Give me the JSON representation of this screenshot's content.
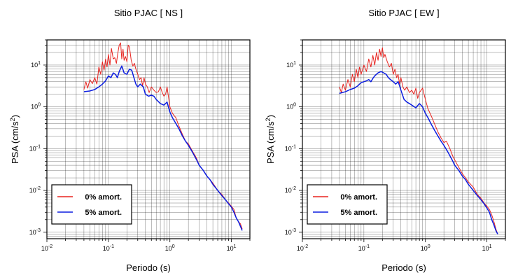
{
  "chart_data": [
    {
      "type": "line",
      "title": "Sitio PJAC [ NS ]",
      "xlabel": "Periodo (s)",
      "ylabel": {
        "base": "PSA (cm/s",
        "sup": "2",
        "close": ")"
      },
      "x_scale": "log",
      "y_scale": "log",
      "xlim": [
        0.01,
        20
      ],
      "ylim": [
        0.0007,
        40
      ],
      "grid": true,
      "legend_position": "bottom-left",
      "x_ticks": [
        {
          "value": 0.01,
          "base": "10",
          "exp": "-2"
        },
        {
          "value": 0.1,
          "base": "10",
          "exp": "-1"
        },
        {
          "value": 1,
          "base": "10",
          "exp": "0"
        },
        {
          "value": 10,
          "base": "10",
          "exp": "1"
        }
      ],
      "y_ticks": [
        {
          "value": 0.001,
          "base": "10",
          "exp": "-3"
        },
        {
          "value": 0.01,
          "base": "10",
          "exp": "-2"
        },
        {
          "value": 0.1,
          "base": "10",
          "exp": "-1"
        },
        {
          "value": 1,
          "base": "10",
          "exp": "0"
        },
        {
          "value": 10,
          "base": "10",
          "exp": "1"
        }
      ],
      "series": [
        {
          "name": "0% amort.",
          "color": "#e8231f",
          "points": [
            [
              0.04,
              2.6
            ],
            [
              0.043,
              4.0
            ],
            [
              0.046,
              2.8
            ],
            [
              0.05,
              4.5
            ],
            [
              0.055,
              3.6
            ],
            [
              0.06,
              5.0
            ],
            [
              0.065,
              3.5
            ],
            [
              0.07,
              9.0
            ],
            [
              0.075,
              6.0
            ],
            [
              0.08,
              12
            ],
            [
              0.085,
              7.5
            ],
            [
              0.09,
              14
            ],
            [
              0.095,
              9
            ],
            [
              0.1,
              18
            ],
            [
              0.106,
              10
            ],
            [
              0.112,
              25
            ],
            [
              0.12,
              14
            ],
            [
              0.127,
              15
            ],
            [
              0.135,
              11
            ],
            [
              0.142,
              19
            ],
            [
              0.15,
              30
            ],
            [
              0.158,
              34
            ],
            [
              0.165,
              14
            ],
            [
              0.173,
              24
            ],
            [
              0.18,
              13
            ],
            [
              0.19,
              16
            ],
            [
              0.2,
              12
            ],
            [
              0.21,
              30
            ],
            [
              0.22,
              27
            ],
            [
              0.235,
              13
            ],
            [
              0.25,
              9.5
            ],
            [
              0.265,
              11
            ],
            [
              0.28,
              8
            ],
            [
              0.3,
              6
            ],
            [
              0.32,
              4.5
            ],
            [
              0.34,
              5.0
            ],
            [
              0.36,
              3.2
            ],
            [
              0.38,
              5.0
            ],
            [
              0.4,
              3.5
            ],
            [
              0.43,
              3.0
            ],
            [
              0.46,
              2.2
            ],
            [
              0.5,
              3.0
            ],
            [
              0.55,
              2.5
            ],
            [
              0.6,
              2.2
            ],
            [
              0.65,
              2.3
            ],
            [
              0.7,
              3.0
            ],
            [
              0.75,
              2.2
            ],
            [
              0.8,
              1.8
            ],
            [
              0.85,
              2.0
            ],
            [
              0.9,
              3.0
            ],
            [
              1.0,
              1.0
            ],
            [
              1.1,
              0.7
            ],
            [
              1.25,
              0.55
            ],
            [
              1.4,
              0.35
            ],
            [
              1.6,
              0.22
            ],
            [
              1.8,
              0.15
            ],
            [
              2.0,
              0.13
            ],
            [
              2.3,
              0.09
            ],
            [
              2.7,
              0.06
            ],
            [
              3.0,
              0.04
            ],
            [
              3.5,
              0.03
            ],
            [
              4.0,
              0.022
            ],
            [
              4.5,
              0.018
            ],
            [
              5.0,
              0.015
            ],
            [
              6.0,
              0.01
            ],
            [
              7.0,
              0.008
            ],
            [
              8.0,
              0.006
            ],
            [
              9.0,
              0.005
            ],
            [
              10,
              0.0042
            ],
            [
              11,
              0.0035
            ],
            [
              12,
              0.0022
            ],
            [
              13,
              0.0018
            ],
            [
              14,
              0.0016
            ],
            [
              15,
              0.0012
            ]
          ]
        },
        {
          "name": "5% amort.",
          "color": "#0b1de0",
          "points": [
            [
              0.04,
              2.3
            ],
            [
              0.05,
              2.4
            ],
            [
              0.06,
              2.6
            ],
            [
              0.07,
              3.0
            ],
            [
              0.08,
              3.5
            ],
            [
              0.09,
              4.2
            ],
            [
              0.1,
              5.5
            ],
            [
              0.11,
              5.0
            ],
            [
              0.12,
              6.5
            ],
            [
              0.13,
              6.0
            ],
            [
              0.14,
              5.0
            ],
            [
              0.15,
              7.0
            ],
            [
              0.165,
              9.5
            ],
            [
              0.18,
              6.5
            ],
            [
              0.2,
              6.0
            ],
            [
              0.22,
              8.0
            ],
            [
              0.24,
              7.5
            ],
            [
              0.26,
              5.0
            ],
            [
              0.28,
              3.5
            ],
            [
              0.3,
              3.0
            ],
            [
              0.33,
              3.5
            ],
            [
              0.37,
              3.0
            ],
            [
              0.4,
              2.0
            ],
            [
              0.45,
              1.8
            ],
            [
              0.5,
              1.9
            ],
            [
              0.55,
              1.8
            ],
            [
              0.6,
              1.5
            ],
            [
              0.7,
              1.2
            ],
            [
              0.8,
              1.1
            ],
            [
              0.9,
              1.3
            ],
            [
              1.0,
              0.75
            ],
            [
              1.1,
              0.55
            ],
            [
              1.25,
              0.4
            ],
            [
              1.4,
              0.3
            ],
            [
              1.6,
              0.2
            ],
            [
              1.8,
              0.15
            ],
            [
              2.0,
              0.12
            ],
            [
              2.3,
              0.085
            ],
            [
              2.7,
              0.055
            ],
            [
              3.0,
              0.04
            ],
            [
              3.5,
              0.03
            ],
            [
              4.0,
              0.022
            ],
            [
              4.5,
              0.018
            ],
            [
              5.0,
              0.014
            ],
            [
              6.0,
              0.01
            ],
            [
              7.0,
              0.0075
            ],
            [
              8.0,
              0.006
            ],
            [
              9.0,
              0.0048
            ],
            [
              10,
              0.004
            ],
            [
              11,
              0.003
            ],
            [
              12,
              0.0022
            ],
            [
              13,
              0.0018
            ],
            [
              14,
              0.0014
            ],
            [
              15,
              0.0011
            ]
          ]
        }
      ]
    },
    {
      "type": "line",
      "title": "Sitio PJAC [ EW ]",
      "xlabel": "Periodo (s)",
      "ylabel": {
        "base": "PSA (cm/s",
        "sup": "2",
        "close": ")"
      },
      "x_scale": "log",
      "y_scale": "log",
      "xlim": [
        0.01,
        20
      ],
      "ylim": [
        0.0007,
        40
      ],
      "grid": true,
      "legend_position": "bottom-left",
      "x_ticks": [
        {
          "value": 0.01,
          "base": "10",
          "exp": "-2"
        },
        {
          "value": 0.1,
          "base": "10",
          "exp": "-1"
        },
        {
          "value": 1,
          "base": "10",
          "exp": "0"
        },
        {
          "value": 10,
          "base": "10",
          "exp": "1"
        }
      ],
      "y_ticks": [
        {
          "value": 0.001,
          "base": "10",
          "exp": "-3"
        },
        {
          "value": 0.01,
          "base": "10",
          "exp": "-2"
        },
        {
          "value": 0.1,
          "base": "10",
          "exp": "-1"
        },
        {
          "value": 1,
          "base": "10",
          "exp": "0"
        },
        {
          "value": 10,
          "base": "10",
          "exp": "1"
        }
      ],
      "series": [
        {
          "name": "0% amort.",
          "color": "#e8231f",
          "points": [
            [
              0.04,
              3.0
            ],
            [
              0.043,
              2.2
            ],
            [
              0.046,
              3.5
            ],
            [
              0.05,
              2.5
            ],
            [
              0.055,
              4.5
            ],
            [
              0.06,
              3.0
            ],
            [
              0.065,
              6.0
            ],
            [
              0.07,
              4.0
            ],
            [
              0.075,
              8.0
            ],
            [
              0.08,
              5.0
            ],
            [
              0.085,
              9.0
            ],
            [
              0.09,
              6.0
            ],
            [
              0.1,
              10
            ],
            [
              0.11,
              7.0
            ],
            [
              0.12,
              14
            ],
            [
              0.13,
              9.0
            ],
            [
              0.14,
              17
            ],
            [
              0.15,
              10
            ],
            [
              0.16,
              20
            ],
            [
              0.17,
              13
            ],
            [
              0.18,
              24
            ],
            [
              0.19,
              16
            ],
            [
              0.2,
              26
            ],
            [
              0.21,
              15
            ],
            [
              0.22,
              18
            ],
            [
              0.24,
              12
            ],
            [
              0.26,
              9
            ],
            [
              0.28,
              11
            ],
            [
              0.3,
              6
            ],
            [
              0.32,
              8
            ],
            [
              0.34,
              5
            ],
            [
              0.36,
              6
            ],
            [
              0.38,
              3.5
            ],
            [
              0.4,
              5.0
            ],
            [
              0.43,
              3.0
            ],
            [
              0.46,
              2.5
            ],
            [
              0.5,
              3.0
            ],
            [
              0.55,
              2.2
            ],
            [
              0.6,
              2.5
            ],
            [
              0.65,
              2.0
            ],
            [
              0.7,
              2.8
            ],
            [
              0.75,
              1.6
            ],
            [
              0.8,
              2.2
            ],
            [
              0.9,
              2.8
            ],
            [
              1.0,
              1.5
            ],
            [
              1.1,
              0.9
            ],
            [
              1.25,
              0.6
            ],
            [
              1.4,
              0.4
            ],
            [
              1.6,
              0.25
            ],
            [
              1.8,
              0.18
            ],
            [
              2.0,
              0.14
            ],
            [
              2.2,
              0.15
            ],
            [
              2.5,
              0.1
            ],
            [
              2.8,
              0.065
            ],
            [
              3.2,
              0.045
            ],
            [
              3.6,
              0.033
            ],
            [
              4.0,
              0.025
            ],
            [
              4.5,
              0.02
            ],
            [
              5.0,
              0.016
            ],
            [
              6.0,
              0.012
            ],
            [
              7.0,
              0.008
            ],
            [
              8.0,
              0.0065
            ],
            [
              9.0,
              0.005
            ],
            [
              10,
              0.0042
            ],
            [
              11,
              0.0035
            ],
            [
              12,
              0.0026
            ],
            [
              13,
              0.0018
            ],
            [
              14,
              0.0012
            ],
            [
              15,
              0.0009
            ]
          ]
        },
        {
          "name": "5% amort.",
          "color": "#0b1de0",
          "points": [
            [
              0.04,
              2.1
            ],
            [
              0.05,
              2.3
            ],
            [
              0.06,
              2.6
            ],
            [
              0.07,
              2.8
            ],
            [
              0.08,
              3.2
            ],
            [
              0.09,
              3.8
            ],
            [
              0.1,
              4.0
            ],
            [
              0.11,
              4.2
            ],
            [
              0.12,
              4.5
            ],
            [
              0.13,
              4.0
            ],
            [
              0.14,
              4.8
            ],
            [
              0.15,
              5.5
            ],
            [
              0.17,
              6.5
            ],
            [
              0.19,
              7.0
            ],
            [
              0.21,
              6.5
            ],
            [
              0.23,
              6.0
            ],
            [
              0.25,
              5.0
            ],
            [
              0.27,
              4.5
            ],
            [
              0.3,
              4.0
            ],
            [
              0.33,
              3.5
            ],
            [
              0.36,
              4.0
            ],
            [
              0.38,
              3.2
            ],
            [
              0.4,
              2.5
            ],
            [
              0.45,
              1.5
            ],
            [
              0.5,
              1.3
            ],
            [
              0.55,
              1.2
            ],
            [
              0.6,
              1.1
            ],
            [
              0.7,
              0.95
            ],
            [
              0.8,
              1.2
            ],
            [
              0.9,
              1.0
            ],
            [
              1.0,
              0.7
            ],
            [
              1.1,
              0.55
            ],
            [
              1.25,
              0.38
            ],
            [
              1.4,
              0.28
            ],
            [
              1.6,
              0.2
            ],
            [
              1.8,
              0.15
            ],
            [
              2.0,
              0.12
            ],
            [
              2.3,
              0.085
            ],
            [
              2.7,
              0.055
            ],
            [
              3.0,
              0.04
            ],
            [
              3.5,
              0.03
            ],
            [
              4.0,
              0.022
            ],
            [
              4.5,
              0.018
            ],
            [
              5.0,
              0.014
            ],
            [
              6.0,
              0.01
            ],
            [
              7.0,
              0.0075
            ],
            [
              8.0,
              0.006
            ],
            [
              9.0,
              0.0048
            ],
            [
              10,
              0.0038
            ],
            [
              11,
              0.003
            ],
            [
              12,
              0.002
            ],
            [
              13,
              0.0015
            ],
            [
              14,
              0.0011
            ],
            [
              15,
              0.0009
            ]
          ]
        }
      ]
    }
  ]
}
